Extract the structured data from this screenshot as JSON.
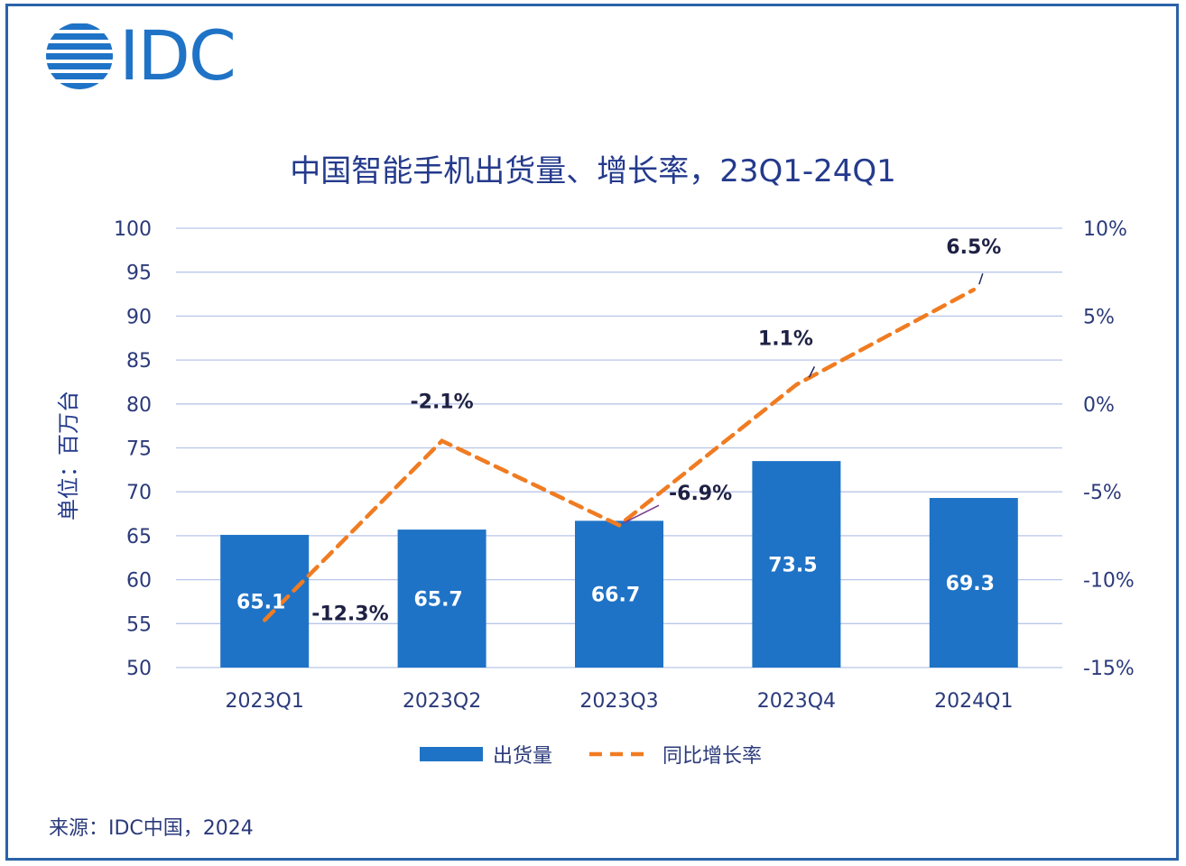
{
  "logo": {
    "text": "IDC"
  },
  "title": "中国智能手机出货量、增长率，23Q1-24Q1",
  "source": "来源：IDC中国，2024",
  "colors": {
    "bar": "#1f73c6",
    "line": "#f07c22",
    "axis_text": "#2b3a7a",
    "grid": "#b9c6ea"
  },
  "chart_data": {
    "type": "bar",
    "title": "中国智能手机出货量、增长率，23Q1-24Q1",
    "categories": [
      "2023Q1",
      "2023Q2",
      "2023Q3",
      "2023Q4",
      "2024Q1"
    ],
    "ylabel": "单位：百万台",
    "ylim": [
      50,
      100
    ],
    "y_ticks": [
      "100",
      "95",
      "90",
      "85",
      "80",
      "75",
      "70",
      "65",
      "60",
      "55",
      "50"
    ],
    "y2lim": [
      -15,
      10
    ],
    "y2_ticks": [
      "10%",
      "5%",
      "0%",
      "-5%",
      "-10%",
      "-15%"
    ],
    "grid": true,
    "legend_position": "bottom",
    "series": [
      {
        "name": "出货量",
        "type": "bar",
        "axis": "left",
        "values": [
          65.1,
          65.7,
          66.7,
          73.5,
          69.3
        ],
        "labels": [
          "65.1",
          "65.7",
          "66.7",
          "73.5",
          "69.3"
        ]
      },
      {
        "name": "同比增长率",
        "type": "line",
        "style": "dashed",
        "axis": "right",
        "values": [
          -12.3,
          -2.1,
          -6.9,
          1.1,
          6.5
        ],
        "labels": [
          "-12.3%",
          "-2.1%",
          "-6.9%",
          "1.1%",
          "6.5%"
        ]
      }
    ]
  }
}
